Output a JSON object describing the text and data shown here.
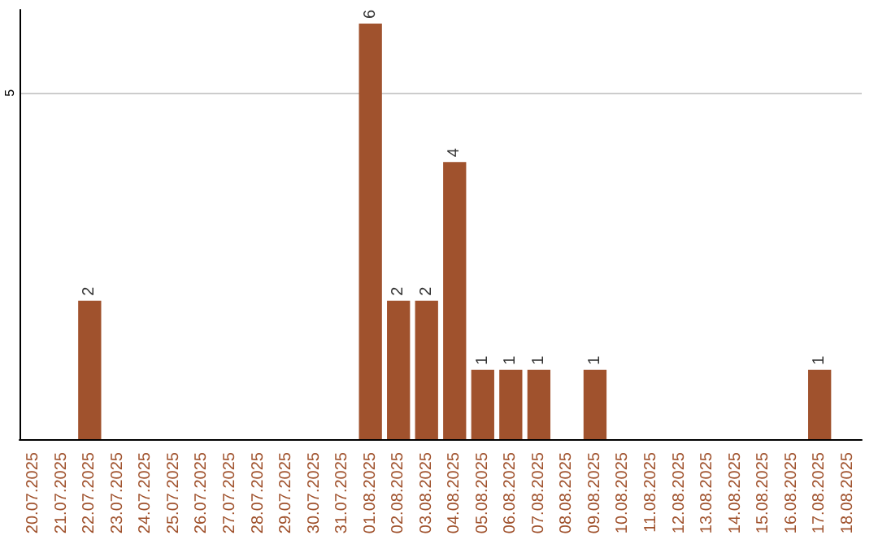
{
  "chart_data": {
    "type": "bar",
    "categories": [
      "20.07.2025",
      "21.07.2025",
      "22.07.2025",
      "23.07.2025",
      "24.07.2025",
      "25.07.2025",
      "26.07.2025",
      "27.07.2025",
      "28.07.2025",
      "29.07.2025",
      "30.07.2025",
      "31.07.2025",
      "01.08.2025",
      "02.08.2025",
      "03.08.2025",
      "04.08.2025",
      "05.08.2025",
      "06.08.2025",
      "07.08.2025",
      "08.08.2025",
      "09.08.2025",
      "10.08.2025",
      "11.08.2025",
      "12.08.2025",
      "13.08.2025",
      "14.08.2025",
      "15.08.2025",
      "16.08.2025",
      "17.08.2025",
      "18.08.2025"
    ],
    "values": [
      0,
      0,
      2,
      0,
      0,
      0,
      0,
      0,
      0,
      0,
      0,
      0,
      6,
      2,
      2,
      4,
      1,
      1,
      1,
      0,
      1,
      0,
      0,
      0,
      0,
      0,
      0,
      0,
      1,
      0
    ],
    "value_labels": [
      null,
      null,
      "2",
      null,
      null,
      null,
      null,
      null,
      null,
      null,
      null,
      null,
      "6",
      "2",
      "2",
      "4",
      "1",
      "1",
      "1",
      null,
      "1",
      null,
      null,
      null,
      null,
      null,
      null,
      null,
      "1",
      null
    ],
    "color": "#a0522d",
    "ylim": [
      0,
      6.2
    ],
    "yticks": [
      5
    ],
    "grid": "y"
  }
}
